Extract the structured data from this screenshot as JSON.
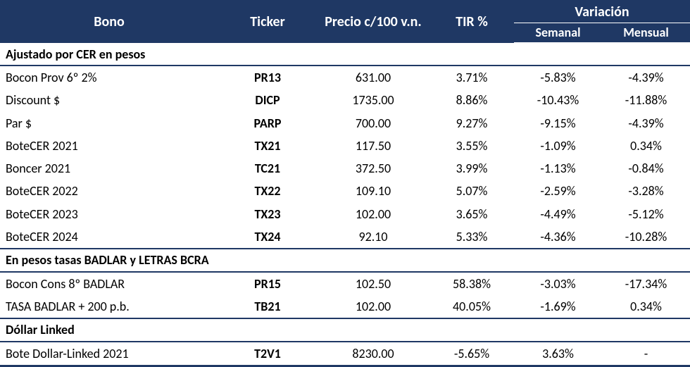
{
  "colors": {
    "header_bg": "#1f3864",
    "header_fg": "#ffffff",
    "rule": "#1f3864",
    "text": "#000000"
  },
  "header": {
    "bono": "Bono",
    "ticker": "Ticker",
    "precio": "Precio c/100 v.n.",
    "tir": "TIR %",
    "variacion": "Variación",
    "semanal": "Semanal",
    "mensual": "Mensual"
  },
  "sections": [
    {
      "title": "Ajustado por CER en pesos",
      "rows": [
        {
          "bono": "Bocon Prov 6º 2%",
          "ticker": "PR13",
          "precio": "631.00",
          "tir": "3.71%",
          "semanal": "-5.83%",
          "mensual": "-4.39%"
        },
        {
          "bono": "Discount $",
          "ticker": "DICP",
          "precio": "1735.00",
          "tir": "8.86%",
          "semanal": "-10.43%",
          "mensual": "-11.88%"
        },
        {
          "bono": "Par $",
          "ticker": "PARP",
          "precio": "700.00",
          "tir": "9.27%",
          "semanal": "-9.15%",
          "mensual": "-4.39%"
        },
        {
          "bono": "BoteCER 2021",
          "ticker": "TX21",
          "precio": "117.50",
          "tir": "3.55%",
          "semanal": "-1.09%",
          "mensual": "0.34%"
        },
        {
          "bono": "Boncer 2021",
          "ticker": "TC21",
          "precio": "372.50",
          "tir": "3.99%",
          "semanal": "-1.13%",
          "mensual": "-0.84%"
        },
        {
          "bono": "BoteCER 2022",
          "ticker": "TX22",
          "precio": "109.10",
          "tir": "5.07%",
          "semanal": "-2.59%",
          "mensual": "-3.28%"
        },
        {
          "bono": "BoteCER 2023",
          "ticker": "TX23",
          "precio": "102.00",
          "tir": "3.65%",
          "semanal": "-4.49%",
          "mensual": "-5.12%"
        },
        {
          "bono": "BoteCER 2024",
          "ticker": "TX24",
          "precio": "92.10",
          "tir": "5.33%",
          "semanal": "-4.36%",
          "mensual": "-10.28%"
        }
      ]
    },
    {
      "title": "En pesos tasas BADLAR y LETRAS BCRA",
      "rows": [
        {
          "bono": "Bocon Cons 8º BADLAR",
          "ticker": "PR15",
          "precio": "102.50",
          "tir": "58.38%",
          "semanal": "-3.03%",
          "mensual": "-17.34%"
        },
        {
          "bono": "TASA BADLAR + 200 p.b.",
          "ticker": "TB21",
          "precio": "102.00",
          "tir": "40.05%",
          "semanal": "-1.69%",
          "mensual": "0.34%"
        }
      ]
    },
    {
      "title": "Dóllar Linked",
      "rows": [
        {
          "bono": "Bote Dollar-Linked 2021",
          "ticker": "T2V1",
          "precio": "8230.00",
          "tir": "-5.65%",
          "semanal": "3.63%",
          "mensual": "-"
        }
      ]
    }
  ]
}
